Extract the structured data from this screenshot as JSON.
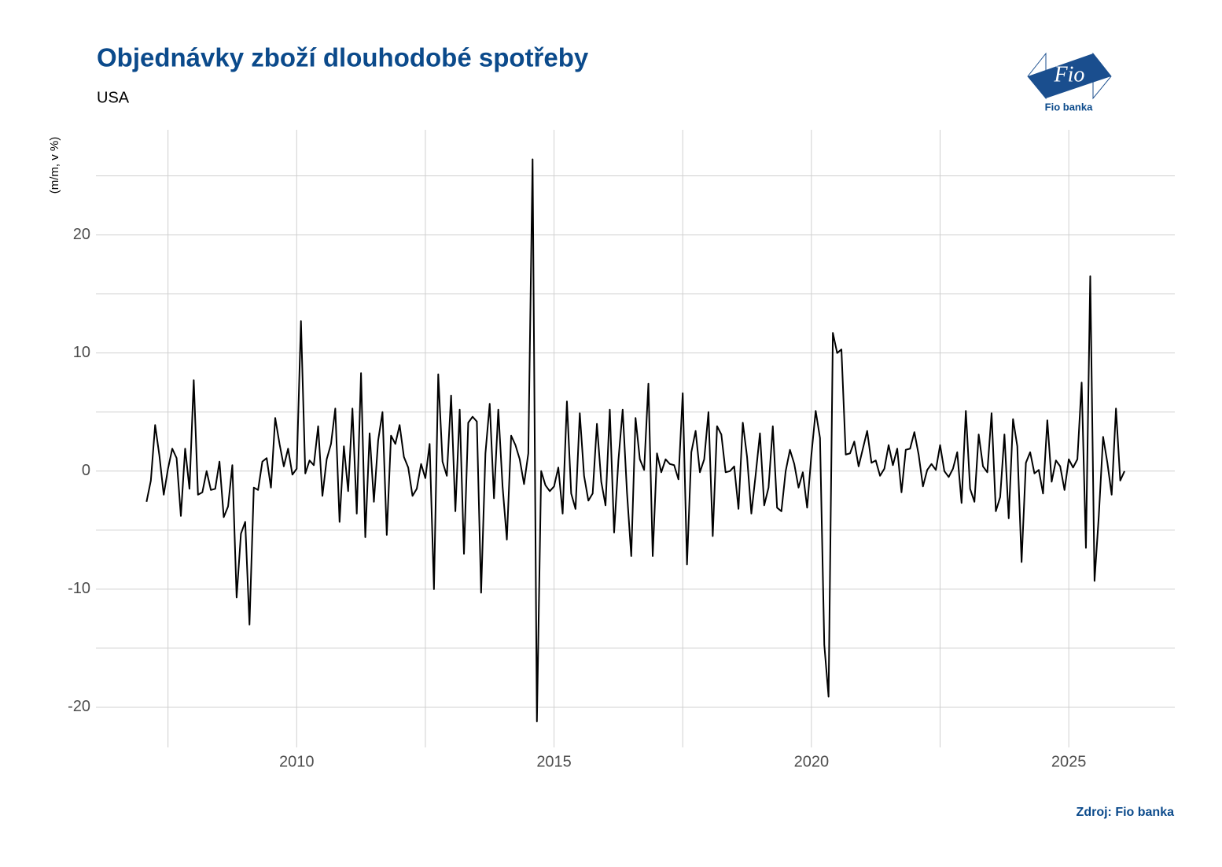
{
  "chart_data": {
    "type": "line",
    "title": "Objednávky zboží dlouhodobé spotřeby",
    "subtitle": "USA",
    "y_label": "(m/m, v %)",
    "source": "Zdroj: Fio banka",
    "logo_text": "Fio",
    "logo_caption": "Fio banka",
    "xlim": [
      2006.1,
      2027.06
    ],
    "xticks": [
      2010,
      2015,
      2020,
      2025
    ],
    "xminor": [
      2007.5,
      2012.5,
      2017.5,
      2022.5
    ],
    "ylim": [
      -23.4,
      28.9
    ],
    "yticks": [
      -20,
      -10,
      0,
      10,
      20
    ],
    "yminor": [
      -15,
      -5,
      5,
      15,
      25
    ],
    "grid": true,
    "color": "#000000",
    "x": [
      2007.083,
      2007.167,
      2007.25,
      2007.333,
      2007.417,
      2007.5,
      2007.583,
      2007.667,
      2007.75,
      2007.833,
      2007.917,
      2008,
      2008.083,
      2008.167,
      2008.25,
      2008.333,
      2008.417,
      2008.5,
      2008.583,
      2008.667,
      2008.75,
      2008.833,
      2008.917,
      2009,
      2009.083,
      2009.167,
      2009.25,
      2009.333,
      2009.417,
      2009.5,
      2009.583,
      2009.667,
      2009.75,
      2009.833,
      2009.917,
      2010,
      2010.083,
      2010.167,
      2010.25,
      2010.333,
      2010.417,
      2010.5,
      2010.583,
      2010.667,
      2010.75,
      2010.833,
      2010.917,
      2011,
      2011.083,
      2011.167,
      2011.25,
      2011.333,
      2011.417,
      2011.5,
      2011.583,
      2011.667,
      2011.75,
      2011.833,
      2011.917,
      2012,
      2012.083,
      2012.167,
      2012.25,
      2012.333,
      2012.417,
      2012.5,
      2012.583,
      2012.667,
      2012.75,
      2012.833,
      2012.917,
      2013,
      2013.083,
      2013.167,
      2013.25,
      2013.333,
      2013.417,
      2013.5,
      2013.583,
      2013.667,
      2013.75,
      2013.833,
      2013.917,
      2014,
      2014.083,
      2014.167,
      2014.25,
      2014.333,
      2014.417,
      2014.5,
      2014.583,
      2014.667,
      2014.75,
      2014.833,
      2014.917,
      2015,
      2015.083,
      2015.167,
      2015.25,
      2015.333,
      2015.417,
      2015.5,
      2015.583,
      2015.667,
      2015.75,
      2015.833,
      2015.917,
      2016,
      2016.083,
      2016.167,
      2016.25,
      2016.333,
      2016.417,
      2016.5,
      2016.583,
      2016.667,
      2016.75,
      2016.833,
      2016.917,
      2017,
      2017.083,
      2017.167,
      2017.25,
      2017.333,
      2017.417,
      2017.5,
      2017.583,
      2017.667,
      2017.75,
      2017.833,
      2017.917,
      2018,
      2018.083,
      2018.167,
      2018.25,
      2018.333,
      2018.417,
      2018.5,
      2018.583,
      2018.667,
      2018.75,
      2018.833,
      2018.917,
      2019,
      2019.083,
      2019.167,
      2019.25,
      2019.333,
      2019.417,
      2019.5,
      2019.583,
      2019.667,
      2019.75,
      2019.833,
      2019.917,
      2020,
      2020.083,
      2020.167,
      2020.25,
      2020.333,
      2020.417,
      2020.5,
      2020.583,
      2020.667,
      2020.75,
      2020.833,
      2020.917,
      2021,
      2021.083,
      2021.167,
      2021.25,
      2021.333,
      2021.417,
      2021.5,
      2021.583,
      2021.667,
      2021.75,
      2021.833,
      2021.917,
      2022,
      2022.083,
      2022.167,
      2022.25,
      2022.333,
      2022.417,
      2022.5,
      2022.583,
      2022.667,
      2022.75,
      2022.833,
      2022.917,
      2023,
      2023.083,
      2023.167,
      2023.25,
      2023.333,
      2023.417,
      2023.5,
      2023.583,
      2023.667,
      2023.75,
      2023.833,
      2023.917,
      2024,
      2024.083,
      2024.167,
      2024.25,
      2024.333,
      2024.417,
      2024.5,
      2024.583,
      2024.667,
      2024.75,
      2024.833,
      2024.917,
      2025,
      2025.083,
      2025.167,
      2025.25,
      2025.333,
      2025.417,
      2025.5,
      2025.583,
      2025.667,
      2025.75,
      2025.833,
      2025.917,
      2026,
      2026.083
    ],
    "values": [
      -2.6,
      -0.8,
      3.9,
      1.3,
      -2.0,
      0.2,
      1.9,
      1.1,
      -3.8,
      1.9,
      -1.5,
      7.7,
      -2.0,
      -1.8,
      0.0,
      -1.6,
      -1.5,
      0.8,
      -3.9,
      -3.0,
      0.5,
      -10.7,
      -5.3,
      -4.3,
      -13.0,
      -1.4,
      -1.6,
      0.8,
      1.1,
      -1.4,
      4.5,
      2.3,
      0.4,
      1.9,
      -0.3,
      0.2,
      12.7,
      -0.2,
      0.9,
      0.5,
      3.8,
      -2.1,
      1.0,
      2.3,
      5.3,
      -4.3,
      2.1,
      -1.7,
      5.3,
      -3.6,
      8.3,
      -5.6,
      3.2,
      -2.6,
      2.6,
      5.0,
      -5.4,
      3.0,
      2.3,
      3.9,
      1.2,
      0.3,
      -2.1,
      -1.5,
      0.6,
      -0.6,
      2.3,
      -10.0,
      8.2,
      0.8,
      -0.4,
      6.4,
      -3.4,
      5.2,
      -7.0,
      4.1,
      4.6,
      4.2,
      -10.3,
      1.5,
      5.7,
      -2.3,
      5.2,
      -1.3,
      -5.8,
      3.0,
      2.2,
      1.0,
      -1.1,
      1.5,
      26.4,
      -21.2,
      0.0,
      -1.2,
      -1.7,
      -1.3,
      0.3,
      -3.6,
      5.9,
      -1.9,
      -3.2,
      4.9,
      -0.4,
      -2.5,
      -1.9,
      4.0,
      -0.9,
      -2.9,
      5.2,
      -5.2,
      0.9,
      5.2,
      -1.8,
      -7.2,
      4.5,
      1.0,
      0.1,
      7.4,
      -7.2,
      1.5,
      -0.1,
      1.0,
      0.6,
      0.5,
      -0.7,
      6.6,
      -7.9,
      1.6,
      3.4,
      -0.1,
      1.0,
      5.0,
      -5.5,
      3.8,
      3.1,
      -0.1,
      0.0,
      0.4,
      -3.2,
      4.1,
      1.2,
      -3.6,
      -0.3,
      3.2,
      -2.9,
      -1.4,
      3.8,
      -3.1,
      -3.4,
      0.0,
      1.8,
      0.6,
      -1.4,
      -0.1,
      -3.1,
      1.4,
      5.1,
      2.8,
      -14.7,
      -19.1,
      11.7,
      10.0,
      10.3,
      1.4,
      1.5,
      2.5,
      0.4,
      1.9,
      3.4,
      0.7,
      0.9,
      -0.4,
      0.2,
      2.2,
      0.5,
      1.9,
      -1.8,
      1.8,
      1.9,
      3.3,
      1.4,
      -1.3,
      0.1,
      0.6,
      0.1,
      2.2,
      0.0,
      -0.5,
      0.2,
      1.6,
      -2.7,
      5.1,
      -1.5,
      -2.6,
      3.1,
      0.4,
      -0.1,
      4.9,
      -3.4,
      -2.2,
      3.1,
      -4.0,
      4.4,
      2.1,
      -7.7,
      0.7,
      1.6,
      -0.2,
      0.1,
      -1.9,
      4.3,
      -0.9,
      0.9,
      0.4,
      -1.6,
      1.0,
      0.3,
      1.0,
      7.5,
      -6.5,
      16.5,
      -9.3,
      -3.8,
      2.9,
      0.7,
      -2.0,
      5.3,
      -0.8,
      0.0
    ]
  }
}
